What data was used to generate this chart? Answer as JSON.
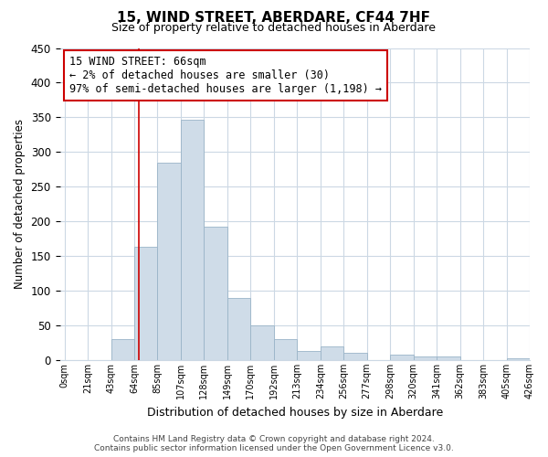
{
  "title": "15, WIND STREET, ABERDARE, CF44 7HF",
  "subtitle": "Size of property relative to detached houses in Aberdare",
  "xlabel": "Distribution of detached houses by size in Aberdare",
  "ylabel": "Number of detached properties",
  "bin_labels": [
    "0sqm",
    "21sqm",
    "43sqm",
    "64sqm",
    "85sqm",
    "107sqm",
    "128sqm",
    "149sqm",
    "170sqm",
    "192sqm",
    "213sqm",
    "234sqm",
    "256sqm",
    "277sqm",
    "298sqm",
    "320sqm",
    "341sqm",
    "362sqm",
    "383sqm",
    "405sqm",
    "426sqm"
  ],
  "bar_heights": [
    0,
    0,
    30,
    163,
    285,
    347,
    192,
    90,
    50,
    30,
    13,
    20,
    10,
    0,
    8,
    5,
    5,
    0,
    0,
    3
  ],
  "bar_color": "#cfdce8",
  "bar_edge_color": "#9ab4c8",
  "annotation_title": "15 WIND STREET: 66sqm",
  "annotation_line1": "← 2% of detached houses are smaller (30)",
  "annotation_line2": "97% of semi-detached houses are larger (1,198) →",
  "annotation_box_color": "#ffffff",
  "annotation_border_color": "#cc0000",
  "property_line_x": 3.2,
  "property_line_color": "#cc0000",
  "ylim": [
    0,
    450
  ],
  "yticks": [
    0,
    50,
    100,
    150,
    200,
    250,
    300,
    350,
    400,
    450
  ],
  "footer_line1": "Contains HM Land Registry data © Crown copyright and database right 2024.",
  "footer_line2": "Contains public sector information licensed under the Open Government Licence v3.0.",
  "bg_color": "#ffffff",
  "grid_color": "#ccd8e4"
}
